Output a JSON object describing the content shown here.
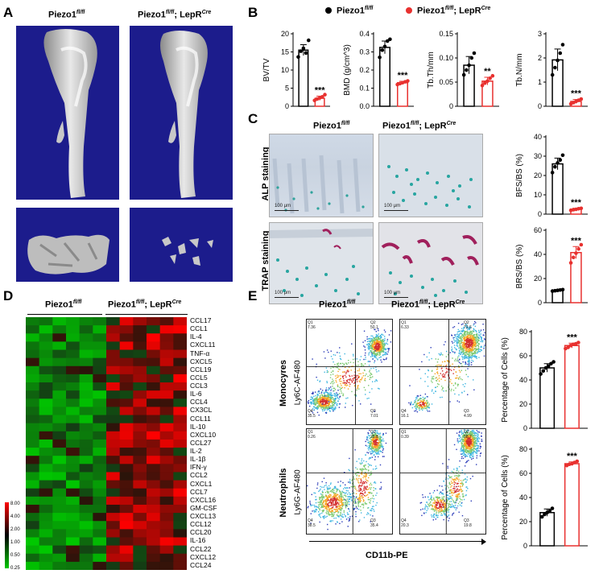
{
  "panels": {
    "A": "A",
    "B": "B",
    "C": "C",
    "D": "D",
    "E": "E"
  },
  "groups": {
    "control": "Piezo1",
    "control_sup": "fl/fl",
    "ko_prefix": "Piezo1",
    "ko_sup": "fl/fl",
    "ko_suffix": "; LepR",
    "ko_sup2": "Cre"
  },
  "legend": {
    "control": "Piezo1",
    "control_sup": "fl/fl",
    "ko": "Piezo1",
    "ko_sup": "fl/fl",
    "ko_mid": "; LepR",
    "ko_sup2": "Cre"
  },
  "colors": {
    "ko": "#e8312f",
    "control": "#000000",
    "ct_bg": "#1c1c8c",
    "teal": "#27a5a0",
    "magenta": "#a0205c"
  },
  "panelC": {
    "row1": "ALP staining",
    "row2": "TRAP staining",
    "scalebar": "100 μm"
  },
  "chart_data": [
    {
      "type": "bar",
      "ylabel": "BV/TV",
      "ylim": [
        0,
        20
      ],
      "yticks": [
        "0",
        "5",
        "10",
        "15",
        "20"
      ],
      "values": [
        15.5,
        2.2
      ],
      "errors": [
        1.5,
        0.6
      ],
      "sig": "***",
      "dots": [
        [
          13.6,
          15.2,
          16.0,
          14.7,
          18.2
        ],
        [
          1.6,
          2.0,
          2.3,
          2.6,
          3.2
        ]
      ]
    },
    {
      "type": "bar",
      "ylabel": "BMD (g/cm^3)",
      "ylim": [
        0,
        0.4
      ],
      "yticks": [
        "0.0",
        "0.1",
        "0.2",
        "0.3",
        "0.4"
      ],
      "values": [
        0.325,
        0.13
      ],
      "errors": [
        0.035,
        0.008
      ],
      "sig": "***",
      "dots": [
        [
          0.27,
          0.31,
          0.33,
          0.36,
          0.37
        ],
        [
          0.12,
          0.125,
          0.13,
          0.135,
          0.14
        ]
      ]
    },
    {
      "type": "bar",
      "ylabel": "Tb.Th/mm",
      "ylim": [
        0,
        0.15
      ],
      "yticks": [
        "0",
        "0.05",
        "0.10",
        "0.15"
      ],
      "values": [
        0.085,
        0.052
      ],
      "errors": [
        0.018,
        0.008
      ],
      "sig": "**",
      "dots": [
        [
          0.065,
          0.075,
          0.085,
          0.1,
          0.11
        ],
        [
          0.043,
          0.048,
          0.052,
          0.058,
          0.063
        ]
      ]
    },
    {
      "type": "bar",
      "ylabel": "Tb.N/mm",
      "ylim": [
        0,
        3
      ],
      "yticks": [
        "0",
        "1",
        "2",
        "3"
      ],
      "values": [
        1.92,
        0.2
      ],
      "errors": [
        0.45,
        0.08
      ],
      "sig": "***",
      "dots": [
        [
          1.3,
          1.6,
          1.9,
          2.2,
          2.55
        ],
        [
          0.1,
          0.15,
          0.2,
          0.25,
          0.3
        ]
      ]
    },
    {
      "type": "bar",
      "ylabel": "BFS/BS (%)",
      "ylim": [
        0,
        40
      ],
      "yticks": [
        "0",
        "10",
        "20",
        "30",
        "40"
      ],
      "values": [
        26.0,
        2.5
      ],
      "errors": [
        3.0,
        0.5
      ],
      "sig": "***",
      "dots": [
        [
          21.5,
          24.5,
          26.5,
          28.0,
          30.5
        ],
        [
          2.0,
          2.3,
          2.5,
          2.8,
          3.0
        ]
      ]
    },
    {
      "type": "bar",
      "ylabel": "BRS/BS (%)",
      "ylim": [
        0,
        60
      ],
      "yticks": [
        "0",
        "20",
        "40",
        "60"
      ],
      "values": [
        10.2,
        41.5
      ],
      "errors": [
        0.6,
        5.0
      ],
      "sig": "***",
      "dots": [
        [
          9.6,
          9.9,
          10.2,
          10.5,
          10.8
        ],
        [
          33.0,
          37.5,
          41.0,
          44.5,
          48.0
        ]
      ]
    },
    {
      "type": "bar",
      "ylabel": "Percentage of Cells (%)",
      "ylim": [
        0,
        80
      ],
      "yticks": [
        "0",
        "20",
        "40",
        "60",
        "80"
      ],
      "values": [
        50.0,
        68.5
      ],
      "errors": [
        3.5,
        2.0
      ],
      "sig": "***",
      "dots": [
        [
          45.0,
          47.5,
          50.0,
          51.5,
          53.5,
          55.0
        ],
        [
          66.0,
          67.0,
          68.5,
          69.5,
          70.0,
          71.0
        ]
      ]
    },
    {
      "type": "bar",
      "ylabel": "Percentage of Cells (%)",
      "ylim": [
        0,
        80
      ],
      "yticks": [
        "0",
        "20",
        "40",
        "60",
        "80"
      ],
      "values": [
        27.5,
        68.0
      ],
      "errors": [
        3.0,
        1.5
      ],
      "sig": "***",
      "dots": [
        [
          24.0,
          26.0,
          27.5,
          29.0,
          31.0
        ],
        [
          66.5,
          67.5,
          68.0,
          69.0,
          70.0
        ]
      ]
    },
    {
      "type": "heatmap",
      "genes": [
        "CCL17",
        "CCL1",
        "IL-4",
        "CXCL11",
        "TNF-α",
        "CXCL5",
        "CCL19",
        "CCL5",
        "CCL3",
        "IL-6",
        "CCL4",
        "CX3CL",
        "CCL11",
        "IL-10",
        "CXCL10",
        "CCL27",
        "IL-2",
        "IL-1β",
        "IFN-γ",
        "CCL2",
        "CXCL1",
        "CCL7",
        "CXCL16",
        "GM-CSF",
        "CXCL13",
        "CCL12",
        "CCL20",
        "IL-16",
        "CCL22",
        "CXCL12",
        "CCL24"
      ],
      "scale": [
        "8.00",
        "4.00",
        "2.00",
        "1.00",
        "0.50",
        "0.25"
      ]
    }
  ],
  "panelE": {
    "row1": "Monocyres",
    "row2": "Neutrophils",
    "ylab1": "Ly6C-AF480",
    "ylab2": "Ly6G-AF480",
    "xlab": "CD11b-PE",
    "gates": [
      {
        "q1": "Q1",
        "v1": "7.36",
        "q2": "Q2",
        "v2": "50.1",
        "q3": "Q3",
        "v3": "7.01",
        "q4": "Q4",
        "v4": "35.5"
      },
      {
        "q1": "Q1",
        "v1": "6.33",
        "q2": "Q2",
        "v2": "72.6",
        "q3": "Q3",
        "v3": "4.99",
        "q4": "Q4",
        "v4": "16.1"
      },
      {
        "q1": "Q1",
        "v1": "0.26",
        "q2": "Q2",
        "v2": "25.8",
        "q3": "Q3",
        "v3": "35.4",
        "q4": "Q4",
        "v4": "38.5"
      },
      {
        "q1": "Q1",
        "v1": "0.39",
        "q2": "Q2",
        "v2": "58.7",
        "q3": "Q3",
        "v3": "19.8",
        "q4": "Q4",
        "v4": "20.3"
      }
    ]
  }
}
